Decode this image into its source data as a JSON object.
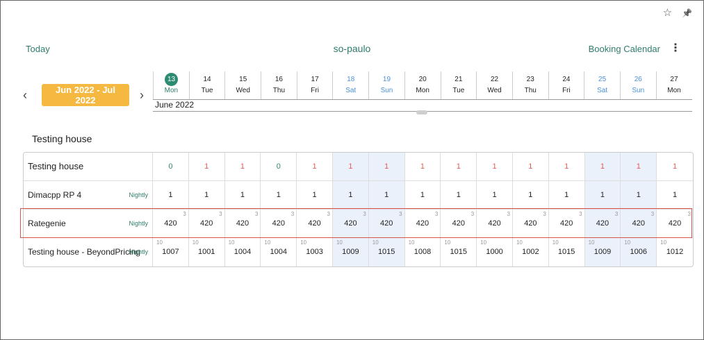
{
  "topbar": {
    "star_icon": "☆",
    "pin_icon": "📌"
  },
  "header": {
    "today": "Today",
    "title": "so-paulo",
    "booking": "Booking Calendar",
    "kebab": "⋮"
  },
  "nav": {
    "prev": "‹",
    "next": "›",
    "range": "Jun 2022 - Jul 2022"
  },
  "month_label": "June 2022",
  "days": [
    {
      "num": "13",
      "dow": "Mon",
      "weekend": false,
      "today": true
    },
    {
      "num": "14",
      "dow": "Tue",
      "weekend": false
    },
    {
      "num": "15",
      "dow": "Wed",
      "weekend": false
    },
    {
      "num": "16",
      "dow": "Thu",
      "weekend": false
    },
    {
      "num": "17",
      "dow": "Fri",
      "weekend": false
    },
    {
      "num": "18",
      "dow": "Sat",
      "weekend": true
    },
    {
      "num": "19",
      "dow": "Sun",
      "weekend": true
    },
    {
      "num": "20",
      "dow": "Mon",
      "weekend": false
    },
    {
      "num": "21",
      "dow": "Tue",
      "weekend": false
    },
    {
      "num": "22",
      "dow": "Wed",
      "weekend": false
    },
    {
      "num": "23",
      "dow": "Thu",
      "weekend": false
    },
    {
      "num": "24",
      "dow": "Fri",
      "weekend": false
    },
    {
      "num": "25",
      "dow": "Sat",
      "weekend": true
    },
    {
      "num": "26",
      "dow": "Sun",
      "weekend": true
    },
    {
      "num": "27",
      "dow": "Mon",
      "weekend": false
    }
  ],
  "section_title": "Testing house",
  "rows": [
    {
      "name": "Testing house",
      "tag": "",
      "values": [
        "0",
        "1",
        "1",
        "0",
        "1",
        "1",
        "1",
        "1",
        "1",
        "1",
        "1",
        "1",
        "1",
        "1",
        "1"
      ],
      "colors": [
        "green",
        "red",
        "red",
        "green",
        "red",
        "red",
        "red",
        "red",
        "red",
        "red",
        "red",
        "red",
        "red",
        "red",
        "red"
      ],
      "sup": "",
      "supl": ""
    },
    {
      "name": "Dimacpp RP 4",
      "tag": "Nightly",
      "values": [
        "1",
        "1",
        "1",
        "1",
        "1",
        "1",
        "1",
        "1",
        "1",
        "1",
        "1",
        "1",
        "1",
        "1",
        "1"
      ],
      "colors": [],
      "sup": "",
      "supl": ""
    },
    {
      "name": "Rategenie",
      "tag": "Nightly",
      "values": [
        "420",
        "420",
        "420",
        "420",
        "420",
        "420",
        "420",
        "420",
        "420",
        "420",
        "420",
        "420",
        "420",
        "420",
        "420"
      ],
      "colors": [],
      "sup": "3",
      "supl": ""
    },
    {
      "name": "Testing house - BeyondPricing",
      "tag": "Nightly",
      "values": [
        "1007",
        "1001",
        "1004",
        "1004",
        "1003",
        "1009",
        "1015",
        "1008",
        "1015",
        "1000",
        "1002",
        "1015",
        "1009",
        "1006",
        "1012"
      ],
      "colors": [],
      "sup": "",
      "supl": "10"
    }
  ]
}
